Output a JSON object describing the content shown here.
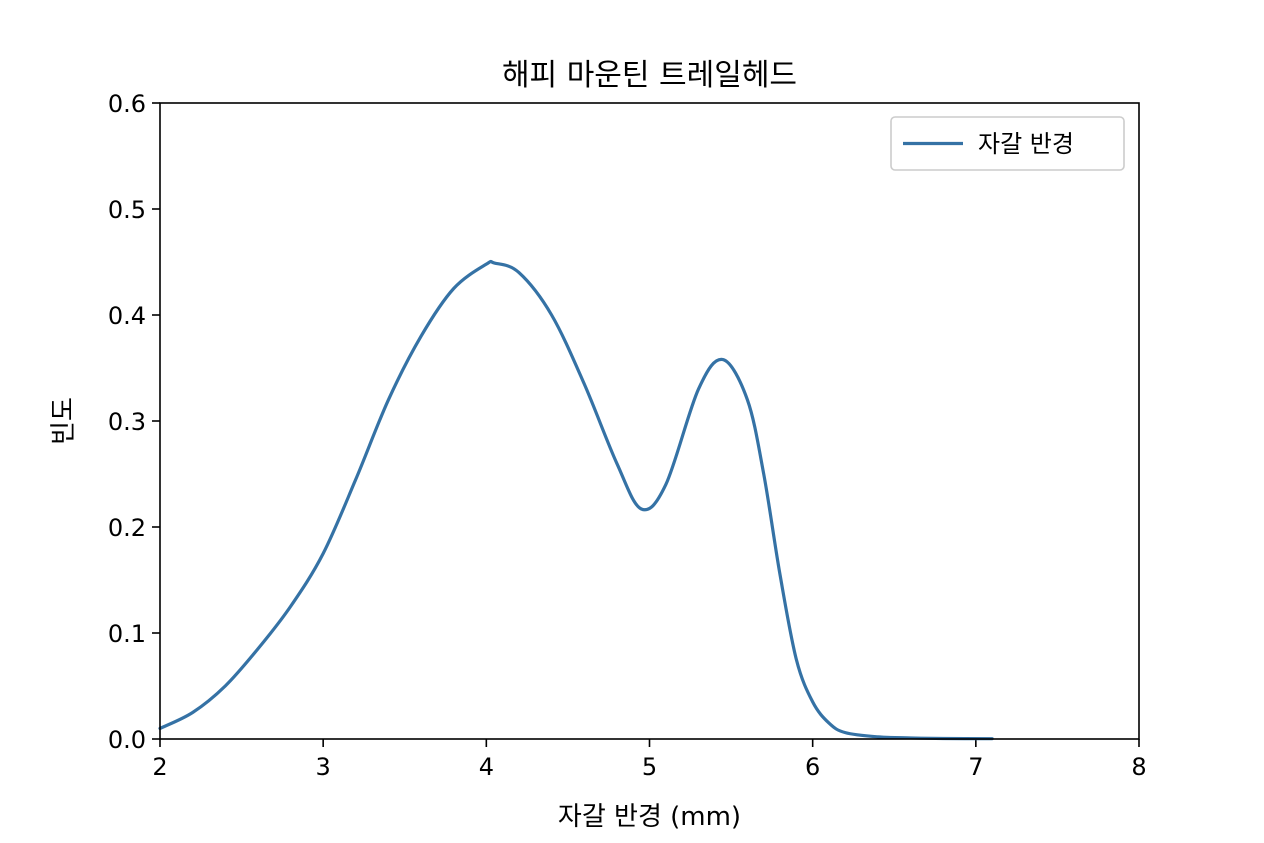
{
  "chart_data": {
    "type": "line",
    "title": "해피 마운틴 트레일헤드",
    "xlabel": "자갈 반경 (mm)",
    "ylabel": "빈도",
    "xlim": [
      2,
      8
    ],
    "ylim": [
      0,
      0.6
    ],
    "xticks": [
      2,
      3,
      4,
      5,
      6,
      7,
      8
    ],
    "yticks": [
      0.0,
      0.1,
      0.2,
      0.3,
      0.4,
      0.5,
      0.6
    ],
    "xtick_labels": [
      "2",
      "3",
      "4",
      "5",
      "6",
      "7",
      "8"
    ],
    "ytick_labels": [
      "0.0",
      "0.1",
      "0.2",
      "0.3",
      "0.4",
      "0.5",
      "0.6"
    ],
    "grid": false,
    "legend_position": "top-right",
    "series": [
      {
        "name": "자갈 반경",
        "color": "#3572a5",
        "x": [
          2.0,
          2.2,
          2.4,
          2.6,
          2.8,
          3.0,
          3.2,
          3.4,
          3.6,
          3.8,
          4.0,
          4.05,
          4.2,
          4.4,
          4.6,
          4.8,
          4.95,
          5.1,
          5.3,
          5.45,
          5.6,
          5.7,
          5.8,
          5.9,
          6.0,
          6.1,
          6.2,
          6.4,
          6.6,
          6.8,
          7.1
        ],
        "y": [
          0.01,
          0.025,
          0.05,
          0.085,
          0.125,
          0.175,
          0.245,
          0.32,
          0.38,
          0.425,
          0.448,
          0.449,
          0.44,
          0.4,
          0.335,
          0.26,
          0.217,
          0.24,
          0.33,
          0.358,
          0.32,
          0.25,
          0.155,
          0.075,
          0.035,
          0.015,
          0.006,
          0.002,
          0.001,
          0.0005,
          0.0003
        ]
      }
    ]
  }
}
